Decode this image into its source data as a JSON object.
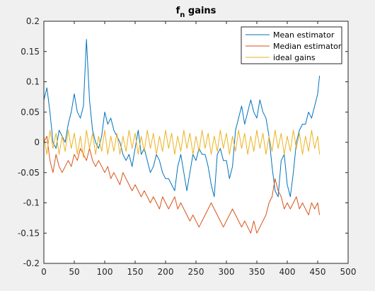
{
  "chart_data": {
    "type": "line",
    "title": "f",
    "title_subscript": "n",
    "title_suffix": " gains",
    "xlabel": "",
    "ylabel": "",
    "xlim": [
      0,
      500
    ],
    "ylim": [
      -0.2,
      0.2
    ],
    "x_ticks": [
      0,
      50,
      100,
      150,
      200,
      250,
      300,
      350,
      400,
      450,
      500
    ],
    "y_ticks": [
      -0.2,
      -0.15,
      -0.1,
      -0.05,
      0,
      0.05,
      0.1,
      0.15,
      0.2
    ],
    "x_tick_labels": [
      "0",
      "50",
      "100",
      "150",
      "200",
      "250",
      "300",
      "350",
      "400",
      "450",
      "500"
    ],
    "y_tick_labels": [
      "-0.2",
      "-0.15",
      "-0.1",
      "-0.05",
      "0",
      "0.05",
      "0.1",
      "0.15",
      "0.2"
    ],
    "grid": false,
    "legend_position": "top-right",
    "series": [
      {
        "name": "Mean estimator",
        "color": "#0072bd",
        "x": [
          0,
          5,
          10,
          15,
          20,
          25,
          30,
          35,
          40,
          45,
          50,
          55,
          60,
          65,
          70,
          75,
          80,
          85,
          90,
          95,
          100,
          105,
          110,
          115,
          120,
          125,
          130,
          135,
          140,
          145,
          150,
          155,
          160,
          165,
          170,
          175,
          180,
          185,
          190,
          195,
          200,
          205,
          210,
          215,
          220,
          225,
          230,
          235,
          240,
          245,
          250,
          255,
          260,
          265,
          270,
          275,
          280,
          285,
          290,
          295,
          300,
          305,
          310,
          315,
          320,
          325,
          330,
          335,
          340,
          345,
          350,
          355,
          360,
          365,
          370,
          375,
          380,
          385,
          390,
          395,
          400,
          405,
          410,
          415,
          420,
          425,
          430,
          435,
          440,
          445,
          450,
          453
        ],
        "y": [
          0.07,
          0.09,
          0.05,
          0.0,
          -0.01,
          0.02,
          0.01,
          0.0,
          0.03,
          0.05,
          0.08,
          0.05,
          0.04,
          0.06,
          0.17,
          0.07,
          0.02,
          0.0,
          -0.01,
          0.01,
          0.05,
          0.03,
          0.04,
          0.02,
          0.01,
          0.0,
          -0.02,
          -0.03,
          -0.02,
          -0.04,
          -0.01,
          0.02,
          -0.02,
          -0.01,
          -0.03,
          -0.05,
          -0.04,
          -0.02,
          -0.03,
          -0.05,
          -0.06,
          -0.06,
          -0.07,
          -0.08,
          -0.04,
          -0.02,
          -0.05,
          -0.08,
          -0.05,
          -0.02,
          -0.03,
          -0.01,
          -0.02,
          -0.02,
          -0.04,
          -0.07,
          -0.09,
          -0.02,
          -0.01,
          -0.03,
          -0.03,
          -0.06,
          -0.04,
          0.02,
          0.04,
          0.06,
          0.03,
          0.05,
          0.07,
          0.05,
          0.04,
          0.07,
          0.05,
          0.04,
          0.01,
          -0.04,
          -0.08,
          -0.09,
          -0.03,
          -0.02,
          -0.07,
          -0.09,
          -0.05,
          0.0,
          0.02,
          0.03,
          0.03,
          0.05,
          0.04,
          0.06,
          0.08,
          0.11
        ]
      },
      {
        "name": "Median estimator",
        "color": "#d95319",
        "x": [
          0,
          5,
          10,
          15,
          20,
          25,
          30,
          35,
          40,
          45,
          50,
          55,
          60,
          65,
          70,
          75,
          80,
          85,
          90,
          95,
          100,
          105,
          110,
          115,
          120,
          125,
          130,
          135,
          140,
          145,
          150,
          155,
          160,
          165,
          170,
          175,
          180,
          185,
          190,
          195,
          200,
          205,
          210,
          215,
          220,
          225,
          230,
          235,
          240,
          245,
          250,
          255,
          260,
          265,
          270,
          275,
          280,
          285,
          290,
          295,
          300,
          305,
          310,
          315,
          320,
          325,
          330,
          335,
          340,
          345,
          350,
          355,
          360,
          365,
          370,
          375,
          380,
          385,
          390,
          395,
          400,
          405,
          410,
          415,
          420,
          425,
          430,
          435,
          440,
          445,
          450,
          453
        ],
        "y": [
          0.0,
          0.01,
          -0.03,
          -0.05,
          -0.02,
          -0.04,
          -0.05,
          -0.04,
          -0.03,
          -0.04,
          -0.02,
          -0.03,
          -0.01,
          -0.02,
          -0.03,
          -0.01,
          -0.03,
          -0.04,
          -0.03,
          -0.04,
          -0.05,
          -0.04,
          -0.06,
          -0.05,
          -0.06,
          -0.07,
          -0.05,
          -0.06,
          -0.07,
          -0.08,
          -0.07,
          -0.08,
          -0.09,
          -0.08,
          -0.09,
          -0.1,
          -0.09,
          -0.1,
          -0.11,
          -0.09,
          -0.1,
          -0.11,
          -0.1,
          -0.09,
          -0.11,
          -0.1,
          -0.11,
          -0.12,
          -0.13,
          -0.12,
          -0.13,
          -0.14,
          -0.13,
          -0.12,
          -0.11,
          -0.1,
          -0.11,
          -0.12,
          -0.13,
          -0.14,
          -0.13,
          -0.12,
          -0.11,
          -0.12,
          -0.13,
          -0.14,
          -0.13,
          -0.14,
          -0.15,
          -0.13,
          -0.15,
          -0.14,
          -0.13,
          -0.12,
          -0.1,
          -0.09,
          -0.06,
          -0.08,
          -0.09,
          -0.11,
          -0.1,
          -0.11,
          -0.1,
          -0.09,
          -0.11,
          -0.1,
          -0.11,
          -0.12,
          -0.1,
          -0.11,
          -0.1,
          -0.12
        ]
      },
      {
        "name": "ideal gains",
        "color": "#edb120",
        "x": [
          0,
          5,
          10,
          15,
          20,
          25,
          30,
          35,
          40,
          45,
          50,
          55,
          60,
          65,
          70,
          75,
          80,
          85,
          90,
          95,
          100,
          105,
          110,
          115,
          120,
          125,
          130,
          135,
          140,
          145,
          150,
          155,
          160,
          165,
          170,
          175,
          180,
          185,
          190,
          195,
          200,
          205,
          210,
          215,
          220,
          225,
          230,
          235,
          240,
          245,
          250,
          255,
          260,
          265,
          270,
          275,
          280,
          285,
          290,
          295,
          300,
          305,
          310,
          315,
          320,
          325,
          330,
          335,
          340,
          345,
          350,
          355,
          360,
          365,
          370,
          375,
          380,
          385,
          390,
          395,
          400,
          405,
          410,
          415,
          420,
          425,
          430,
          435,
          440,
          445,
          450,
          453
        ],
        "y": [
          0.01,
          -0.02,
          0.02,
          -0.01,
          0.015,
          -0.02,
          0.01,
          -0.015,
          0.02,
          -0.01,
          0.015,
          -0.02,
          0.01,
          -0.025,
          0.02,
          -0.01,
          0.015,
          -0.02,
          0.01,
          -0.015,
          0.02,
          -0.02,
          0.01,
          -0.015,
          0.015,
          -0.02,
          0.01,
          -0.015,
          0.02,
          -0.01,
          0.015,
          -0.02,
          0.01,
          -0.015,
          0.02,
          -0.01,
          0.015,
          -0.02,
          0.01,
          -0.015,
          0.02,
          -0.01,
          0.015,
          -0.02,
          0.01,
          -0.015,
          0.02,
          -0.01,
          0.015,
          -0.02,
          0.01,
          -0.015,
          0.02,
          -0.01,
          0.015,
          -0.02,
          0.01,
          -0.015,
          0.02,
          -0.01,
          0.015,
          -0.02,
          0.01,
          -0.015,
          0.02,
          -0.01,
          0.015,
          -0.02,
          0.01,
          -0.015,
          0.02,
          -0.01,
          0.015,
          -0.02,
          0.01,
          -0.015,
          0.02,
          -0.01,
          0.015,
          -0.02,
          0.01,
          -0.015,
          0.02,
          -0.01,
          0.015,
          -0.02,
          0.01,
          -0.015,
          0.02,
          -0.01,
          0.01,
          -0.02
        ]
      }
    ]
  }
}
